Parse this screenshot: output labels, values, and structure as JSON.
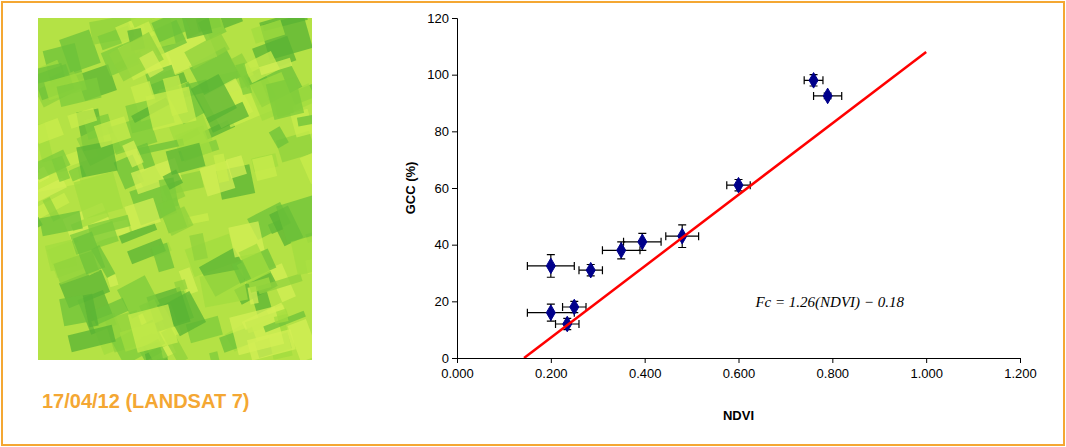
{
  "image": {
    "caption": "17/04/12 (LANDSAT 7)"
  },
  "chart_data": {
    "type": "scatter",
    "x_label": "NDVI",
    "y_label": "GCC (%)",
    "xlim": [
      0,
      1.2
    ],
    "ylim": [
      0,
      120
    ],
    "xticks": [
      {
        "value": 0,
        "label": "0.000"
      },
      {
        "value": 0.2,
        "label": "0.200"
      },
      {
        "value": 0.4,
        "label": "0.400"
      },
      {
        "value": 0.6,
        "label": "0.600"
      },
      {
        "value": 0.8,
        "label": "0.800"
      },
      {
        "value": 1.0,
        "label": "1.000"
      },
      {
        "value": 1.2,
        "label": "1.200"
      }
    ],
    "yticks": [
      0,
      20,
      40,
      60,
      80,
      100,
      120
    ],
    "grid": false,
    "series": [
      {
        "type": "scatter",
        "color": "#00008b",
        "marker": "diamond",
        "x": [
          0.76,
          0.79,
          0.6,
          0.48,
          0.395,
          0.35,
          0.285,
          0.2,
          0.25,
          0.2,
          0.235
        ],
        "values": [
          98,
          92.5,
          61,
          43,
          41,
          38,
          31,
          32.5,
          18,
          16,
          12
        ],
        "x_error": [
          0.02,
          0.03,
          0.025,
          0.035,
          0.04,
          0.04,
          0.025,
          0.05,
          0.025,
          0.05,
          0.025
        ],
        "y_error": [
          2,
          1,
          2,
          4,
          3,
          3,
          2,
          4,
          2,
          3,
          2
        ]
      },
      {
        "type": "line",
        "color": "#ff0000",
        "line_style": "solid",
        "x": [
          0.143,
          1.0
        ],
        "values": [
          0,
          108
        ]
      }
    ],
    "annotations": [
      {
        "text": "Fc = 1.26(NDVI) − 0.18"
      }
    ]
  }
}
